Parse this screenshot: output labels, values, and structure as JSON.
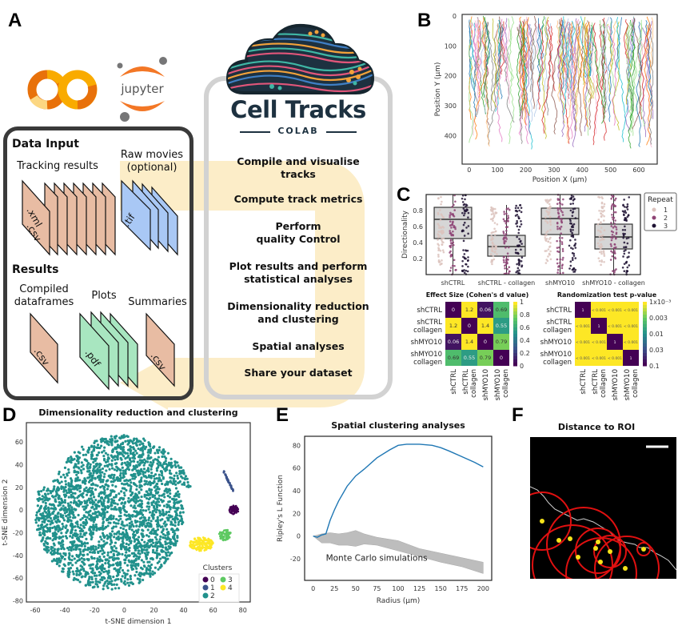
{
  "panels": {
    "A": {
      "letter": "A",
      "logos": [
        "colab-logo",
        "jupyter-logo"
      ],
      "jupyter_text": "jupyter",
      "app_logo": {
        "name": "Cell Tracks",
        "subtitle": "COLAB"
      },
      "data_input": {
        "heading": "Data Input",
        "tracking_label": "Tracking results",
        "tracking_ext": [
          ".xml",
          ".csv"
        ],
        "raw_label": "Raw movies\n(optional)",
        "raw_line1": "Raw movies",
        "raw_line2": "(optional)",
        "raw_ext": ".tif"
      },
      "results": {
        "heading": "Results",
        "compiled_line1": "Compiled",
        "compiled_line2": "dataframes",
        "compiled_ext": ".csv",
        "plots_label": "Plots",
        "plots_ext": ".pdf",
        "summaries_label": "Summaries",
        "summaries_ext": ".csv"
      },
      "steps": [
        "Compile and visualise tracks",
        "Compute track metrics",
        "Perform quality Control",
        "Plot results and perform statistical analyses",
        "Dimensionality reduction and clustering",
        "Spatial analyses",
        "Share your dataset"
      ],
      "step_lines": [
        [
          "Compile and visualise",
          "tracks"
        ],
        [
          "Compute track metrics"
        ],
        [
          "Perform",
          "quality Control"
        ],
        [
          "Plot results and perform",
          "statistical analyses"
        ],
        [
          "Dimensionality reduction",
          "and clustering"
        ],
        [
          "Spatial analyses"
        ],
        [
          "Share your dataset"
        ]
      ],
      "colors": {
        "file_tan": "#e8bca3",
        "file_blue": "#a9c8f5",
        "file_green": "#a8e6c0",
        "arrow": "#fbe7b5",
        "box_dark": "#3a3a3a",
        "box_light": "#cfcfcf"
      }
    },
    "B": {
      "letter": "B"
    },
    "C": {
      "letter": "C"
    },
    "D": {
      "letter": "D"
    },
    "E": {
      "letter": "E"
    },
    "F": {
      "letter": "F",
      "title": "Distance to ROI",
      "colors": {
        "background": "#000000",
        "circles": "#e01010",
        "points": "#f5e31a",
        "roi_edge": "#cccccc",
        "scalebar": "#ffffff"
      }
    }
  },
  "chart_data": [
    {
      "id": "B",
      "type": "line",
      "title": "",
      "xlabel": "Position X (µm)",
      "ylabel": "Position Y (µm)",
      "xlim": [
        -25,
        665
      ],
      "ylim": [
        495,
        -5
      ],
      "xticks": [
        0,
        100,
        200,
        300,
        400,
        500,
        600
      ],
      "yticks": [
        0,
        100,
        200,
        300,
        400
      ],
      "description": "Many cell tracks starting near y=0 and migrating downward to y≈350–470",
      "track_count_approx": 160
    },
    {
      "id": "C",
      "type": "box",
      "title": "",
      "xlabel": "",
      "ylabel": "Directionality",
      "ylim": [
        0.0,
        1.0
      ],
      "yticks": [
        0.2,
        0.4,
        0.6,
        0.8
      ],
      "categories": [
        "shCTRL",
        "shCTRL - collagen",
        "shMYO10",
        "shMYO10 - collagen"
      ],
      "boxes": [
        {
          "category": "shCTRL",
          "q1": 0.45,
          "median": 0.69,
          "q3": 0.84,
          "whisker_low": 0.0,
          "whisker_high": 1.0
        },
        {
          "category": "shCTRL - collagen",
          "q1": 0.23,
          "median": 0.35,
          "q3": 0.49,
          "whisker_low": 0.0,
          "whisker_high": 0.87
        },
        {
          "category": "shMYO10",
          "q1": 0.5,
          "median": 0.7,
          "q3": 0.83,
          "whisker_low": 0.01,
          "whisker_high": 1.0
        },
        {
          "category": "shMYO10 - collagen",
          "q1": 0.32,
          "median": 0.47,
          "q3": 0.63,
          "whisker_low": 0.0,
          "whisker_high": 1.0
        }
      ],
      "legend": {
        "title": "Repeat",
        "entries": [
          "1",
          "2",
          "3"
        ],
        "colors": [
          "#dcc3bd",
          "#8e4475",
          "#1e1233"
        ],
        "placement": "right"
      }
    },
    {
      "id": "C-effect",
      "type": "heatmap",
      "title": "Effect Size (Cohen's d value)",
      "rows": [
        "shCTRL",
        "shCTRL\ncollagen",
        "shMYO10",
        "shMYO10\ncollagen"
      ],
      "row_lines": [
        [
          "shCTRL"
        ],
        [
          "shCTRL",
          "collagen"
        ],
        [
          "shMYO10"
        ],
        [
          "shMYO10",
          "collagen"
        ]
      ],
      "cols": [
        "shCTRL",
        "shCTRL collagen",
        "shMYO10",
        "shMYO10 collagen"
      ],
      "col_lines": [
        [
          "shCTRL"
        ],
        [
          "shCTRL",
          "collagen"
        ],
        [
          "shMYO10"
        ],
        [
          "shMYO10",
          "collagen"
        ]
      ],
      "values": [
        [
          0,
          1.2,
          0.06,
          0.69
        ],
        [
          1.2,
          0,
          1.4,
          0.55
        ],
        [
          0.06,
          1.4,
          0,
          0.79
        ],
        [
          0.69,
          0.55,
          0.79,
          0
        ]
      ],
      "labels": [
        [
          "0",
          "1.2",
          "0.06",
          "0.69"
        ],
        [
          "1.2",
          "0",
          "1.4",
          "0.55"
        ],
        [
          "0.06",
          "1.4",
          "0",
          "0.79"
        ],
        [
          "0.69",
          "0.55",
          "0.79",
          "0"
        ]
      ],
      "colorbar": {
        "min": 0,
        "max": 1,
        "ticks": [
          "0",
          "0.2",
          "0.4",
          "0.6",
          "0.8",
          "1"
        ],
        "cmap": "viridis"
      }
    },
    {
      "id": "C-pvalue",
      "type": "heatmap",
      "title": "Randomization test p-value",
      "rows": [
        "shCTRL",
        "shCTRL\ncollagen",
        "shMYO10",
        "shMYO10\ncollagen"
      ],
      "row_lines": [
        [
          "shCTRL"
        ],
        [
          "shCTRL",
          "collagen"
        ],
        [
          "shMYO10"
        ],
        [
          "shMYO10",
          "collagen"
        ]
      ],
      "col_lines": [
        [
          "shCTRL"
        ],
        [
          "shCTRL",
          "collagen"
        ],
        [
          "shMYO10"
        ],
        [
          "shMYO10",
          "collagen"
        ]
      ],
      "labels": [
        [
          "1",
          "< 0.001",
          "< 0.001",
          "< 0.001"
        ],
        [
          "< 0.001",
          "1",
          "< 0.001",
          "< 0.001"
        ],
        [
          "< 0.001",
          "< 0.001",
          "1",
          "< 0.001"
        ],
        [
          "< 0.001",
          "< 0.001",
          "< 0.001",
          "1"
        ]
      ],
      "colorbar": {
        "ticks": [
          "1x10⁻³",
          "0.003",
          "0.01",
          "0.03",
          "0.1"
        ],
        "cmap": "viridis_r (log)"
      }
    },
    {
      "id": "D",
      "type": "scatter",
      "title": "Dimensionality reduction and clustering",
      "xlabel": "t-SNE dimension 1",
      "ylabel": "t-SNE dimension 2",
      "xlim": [
        -66,
        85
      ],
      "ylim": [
        -81,
        77
      ],
      "xticks": [
        -60,
        -40,
        -20,
        0,
        20,
        40,
        60,
        80
      ],
      "yticks": [
        -80,
        -60,
        -40,
        -20,
        0,
        20,
        40,
        60
      ],
      "legend": {
        "title": "Clusters",
        "entries": [
          "0",
          "1",
          "2",
          "3",
          "4"
        ],
        "colors": [
          "#440154",
          "#3b528b",
          "#21918c",
          "#5ec962",
          "#fde725"
        ],
        "placement": "bottom-right"
      },
      "clusters": [
        {
          "label": "0",
          "center": [
            74,
            0
          ],
          "extent": "small"
        },
        {
          "label": "1",
          "center": [
            70,
            22
          ],
          "extent": "thin diagonal"
        },
        {
          "label": "2",
          "center": [
            -5,
            0
          ],
          "extent": "large main body"
        },
        {
          "label": "3",
          "center": [
            68,
            -22
          ],
          "extent": "small"
        },
        {
          "label": "4",
          "center": [
            52,
            -30
          ],
          "extent": "medium"
        }
      ]
    },
    {
      "id": "E",
      "type": "line",
      "title": "Spatial clustering analyses",
      "xlabel": "Radius (µm)",
      "ylabel": "Ripley's L Function",
      "xlim": [
        -10,
        210
      ],
      "ylim": [
        -39,
        88
      ],
      "xticks": [
        0,
        25,
        50,
        75,
        100,
        125,
        150,
        175,
        200
      ],
      "yticks": [
        -20,
        0,
        20,
        40,
        60,
        80
      ],
      "x": [
        0,
        5,
        10,
        15,
        20,
        25,
        30,
        40,
        50,
        60,
        75,
        90,
        100,
        110,
        125,
        140,
        150,
        160,
        175,
        190,
        200
      ],
      "series": [
        {
          "name": "Ripley's L",
          "color": "#1f77b4",
          "values": [
            0,
            -1,
            1,
            2,
            14,
            23,
            31,
            44,
            53,
            59,
            69,
            76,
            80,
            81,
            81,
            80,
            78,
            75,
            70,
            65,
            61
          ]
        }
      ],
      "band": {
        "name": "Monte Carlo simulations",
        "x": [
          0,
          10,
          20,
          30,
          40,
          50,
          60,
          75,
          100,
          125,
          150,
          175,
          200
        ],
        "upper": [
          0,
          2,
          3,
          2,
          3,
          5,
          2,
          -1,
          -4,
          -11,
          -15,
          -19,
          -23
        ],
        "lower": [
          0,
          -6,
          -6,
          -8,
          -8,
          -9,
          -7,
          -8,
          -13,
          -18,
          -23,
          -27,
          -33
        ]
      },
      "annotation": "Monte Carlo simulations"
    }
  ]
}
